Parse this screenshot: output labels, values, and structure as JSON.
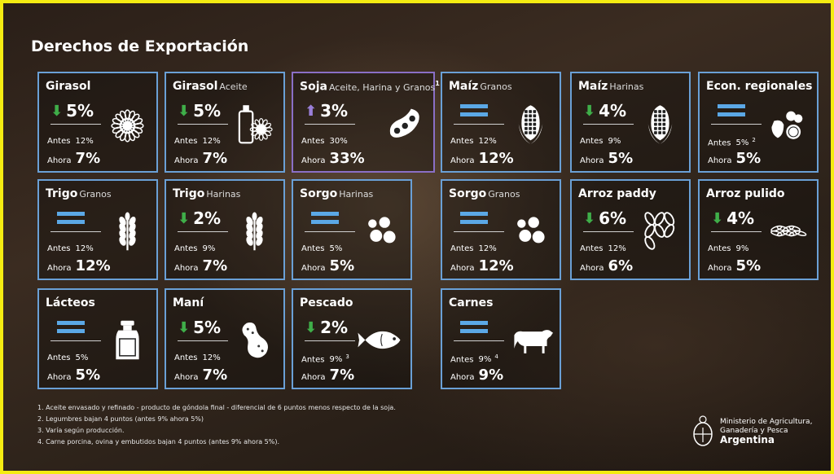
{
  "title": "Derechos de Exportación",
  "labels": {
    "antes": "Antes",
    "ahora": "Ahora"
  },
  "cards": [
    {
      "name": "Girasol",
      "sub": "",
      "change": "5%",
      "direction": "down",
      "before": "12%",
      "after": "7%",
      "icon": "sunflower-icon"
    },
    {
      "name": "Girasol",
      "sub": "Aceite",
      "change": "5%",
      "direction": "down",
      "before": "12%",
      "after": "7%",
      "icon": "oil-bottle-sunflower-icon"
    },
    {
      "name": "Soja",
      "sub": "Aceite, Harina y Granos",
      "sup": "1",
      "change": "3%",
      "direction": "up",
      "before": "30%",
      "after": "33%",
      "icon": "soybean-icon"
    },
    {
      "name": "Maíz",
      "sub": "Granos",
      "change": "",
      "direction": "equal",
      "before": "12%",
      "after": "12%",
      "icon": "corn-icon"
    },
    {
      "name": "Maíz",
      "sub": "Harinas",
      "change": "4%",
      "direction": "down",
      "before": "9%",
      "after": "5%",
      "icon": "corn-icon"
    },
    {
      "name": "Econ. regionales",
      "sub": "",
      "change": "",
      "direction": "equal",
      "before": "5%",
      "before_note": "2",
      "after": "5%",
      "icon": "fruits-icon"
    },
    {
      "name": "Trigo",
      "sub": "Granos",
      "change": "",
      "direction": "equal",
      "before": "12%",
      "after": "12%",
      "icon": "wheat-icon"
    },
    {
      "name": "Trigo",
      "sub": "Harinas",
      "change": "2%",
      "direction": "down",
      "before": "9%",
      "after": "7%",
      "icon": "wheat-icon"
    },
    {
      "name": "Sorgo",
      "sub": "Harinas",
      "change": "",
      "direction": "equal",
      "before": "5%",
      "after": "5%",
      "icon": "sorghum-icon"
    },
    {
      "name": "Sorgo",
      "sub": "Granos",
      "change": "",
      "direction": "equal",
      "before": "12%",
      "after": "12%",
      "icon": "sorghum-icon"
    },
    {
      "name": "Arroz paddy",
      "sub": "",
      "change": "6%",
      "direction": "down",
      "before": "12%",
      "after": "6%",
      "icon": "rice-grains-icon"
    },
    {
      "name": "Arroz pulido",
      "sub": "",
      "change": "4%",
      "direction": "down",
      "before": "9%",
      "after": "5%",
      "icon": "rice-pile-icon"
    },
    {
      "name": "Lácteos",
      "sub": "",
      "change": "",
      "direction": "equal",
      "before": "5%",
      "after": "5%",
      "icon": "milk-can-icon"
    },
    {
      "name": "Maní",
      "sub": "",
      "change": "5%",
      "direction": "down",
      "before": "12%",
      "after": "7%",
      "icon": "peanut-icon"
    },
    {
      "name": "Pescado",
      "sub": "",
      "change": "2%",
      "direction": "down",
      "before": "9%",
      "before_note": "3",
      "after": "7%",
      "icon": "fish-icon"
    },
    {
      "name": "Carnes",
      "sub": "",
      "change": "",
      "direction": "equal",
      "before": "9%",
      "before_note": "4",
      "after": "9%",
      "icon": "cow-icon"
    }
  ],
  "footnotes": [
    "1. Aceite envasado y refinado - producto de góndola final - diferencial de 6 puntos menos respecto de la soja.",
    "2. Legumbres bajan 4 puntos (antes 9% ahora 5%)",
    "3. Varía según producción.",
    "4. Carne porcina, ovina y embutidos bajan 4 puntos (antes 9% ahora 5%)."
  ],
  "ministry": {
    "line1": "Ministerio de Agricultura,",
    "line2": "Ganadería y Pesca",
    "country": "Argentina",
    "icon": "coat-of-arms-icon"
  },
  "colors": {
    "frame": "#f4ec12",
    "card_border": "#6aa0d6",
    "soja_border": "#8a6fc6",
    "down": "#3fae49",
    "up": "#9a7fd8",
    "equal": "#5ba8e6"
  }
}
